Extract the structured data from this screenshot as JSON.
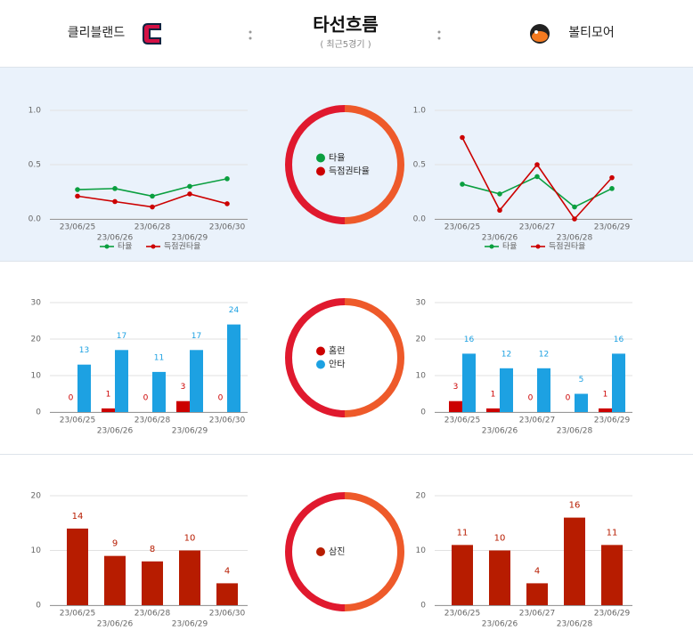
{
  "header": {
    "home_team": "클리블랜드",
    "title": "타선흐름",
    "subtitle": "( 최근5경기 )",
    "away_team": "볼티모어"
  },
  "chart_data": [
    {
      "type": "line",
      "categories": [
        "23/06/25",
        "23/06/26",
        "23/06/28",
        "23/06/29",
        "23/06/30"
      ],
      "series": [
        {
          "name": "타율",
          "color": "#0a9f3f",
          "values": [
            0.27,
            0.28,
            0.21,
            0.3,
            0.37
          ]
        },
        {
          "name": "득점권타율",
          "color": "#cc0000",
          "values": [
            0.21,
            0.16,
            0.11,
            0.23,
            0.14
          ]
        }
      ],
      "ylim": [
        0,
        1
      ],
      "yticks": [
        {
          "value": 0,
          "label": "0.0"
        },
        {
          "value": 0.5,
          "label": "0.5"
        },
        {
          "value": 1,
          "label": "1.0"
        }
      ],
      "grid": true,
      "legend": "bottom"
    },
    {
      "type": "line",
      "categories": [
        "23/06/25",
        "23/06/26",
        "23/06/27",
        "23/06/28",
        "23/06/29"
      ],
      "series": [
        {
          "name": "타율",
          "color": "#0a9f3f",
          "values": [
            0.32,
            0.23,
            0.39,
            0.11,
            0.28
          ]
        },
        {
          "name": "득점권타율",
          "color": "#cc0000",
          "values": [
            0.75,
            0.08,
            0.5,
            0,
            0.38
          ]
        }
      ],
      "ylim": [
        0,
        1
      ],
      "yticks": [
        {
          "value": 0,
          "label": "0.0"
        },
        {
          "value": 0.5,
          "label": "0.5"
        },
        {
          "value": 1,
          "label": "1.0"
        }
      ],
      "grid": true,
      "legend": "bottom"
    },
    {
      "type": "bar",
      "categories": [
        "23/06/25",
        "23/06/26",
        "23/06/28",
        "23/06/29",
        "23/06/30"
      ],
      "series": [
        {
          "name": "홈런",
          "color": "#cc0000",
          "values": [
            0,
            1,
            0,
            3,
            0
          ]
        },
        {
          "name": "안타",
          "color": "#1da1e2",
          "values": [
            13,
            17,
            11,
            17,
            24
          ]
        }
      ],
      "ylim": [
        0,
        30
      ],
      "yticks": [
        0,
        10,
        20,
        30
      ],
      "grid": true
    },
    {
      "type": "bar",
      "categories": [
        "23/06/25",
        "23/06/26",
        "23/06/27",
        "23/06/28",
        "23/06/29"
      ],
      "series": [
        {
          "name": "홈런",
          "color": "#cc0000",
          "values": [
            3,
            1,
            0,
            0,
            1
          ]
        },
        {
          "name": "안타",
          "color": "#1da1e2",
          "values": [
            16,
            12,
            12,
            5,
            16
          ]
        }
      ],
      "ylim": [
        0,
        30
      ],
      "yticks": [
        0,
        10,
        20,
        30
      ],
      "grid": true
    },
    {
      "type": "bar",
      "categories": [
        "23/06/25",
        "23/06/26",
        "23/06/28",
        "23/06/29",
        "23/06/30"
      ],
      "series": [
        {
          "name": "삼진",
          "color": "#b71c00",
          "values": [
            14,
            9,
            8,
            10,
            4
          ]
        }
      ],
      "ylim": [
        0,
        20
      ],
      "yticks": [
        0,
        10,
        20
      ],
      "grid": true
    },
    {
      "type": "bar",
      "categories": [
        "23/06/25",
        "23/06/26",
        "23/06/27",
        "23/06/28",
        "23/06/29"
      ],
      "series": [
        {
          "name": "삼진",
          "color": "#b71c00",
          "values": [
            11,
            10,
            4,
            16,
            11
          ]
        }
      ],
      "ylim": [
        0,
        20
      ],
      "yticks": [
        0,
        10,
        20
      ],
      "grid": true
    }
  ]
}
